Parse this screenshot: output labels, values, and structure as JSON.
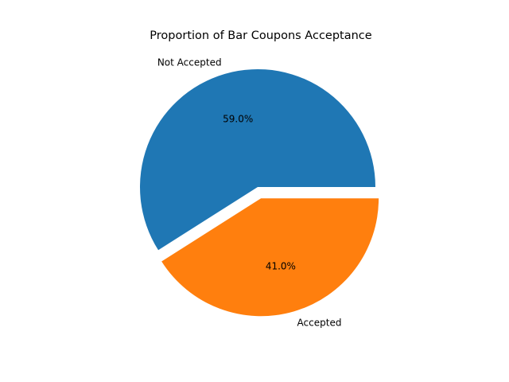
{
  "chart_data": {
    "type": "pie",
    "title": "Proportion of Bar Coupons Acceptance",
    "slices": [
      {
        "label": "Not Accepted",
        "value": 59.0,
        "pct_label": "59.0%",
        "color": "#1f77b4",
        "exploded": false
      },
      {
        "label": "Accepted",
        "value": 41.0,
        "pct_label": "41.0%",
        "color": "#ff7f0e",
        "exploded": true
      }
    ],
    "start_angle_deg": 0,
    "direction": "counterclockwise",
    "legend": "none"
  }
}
